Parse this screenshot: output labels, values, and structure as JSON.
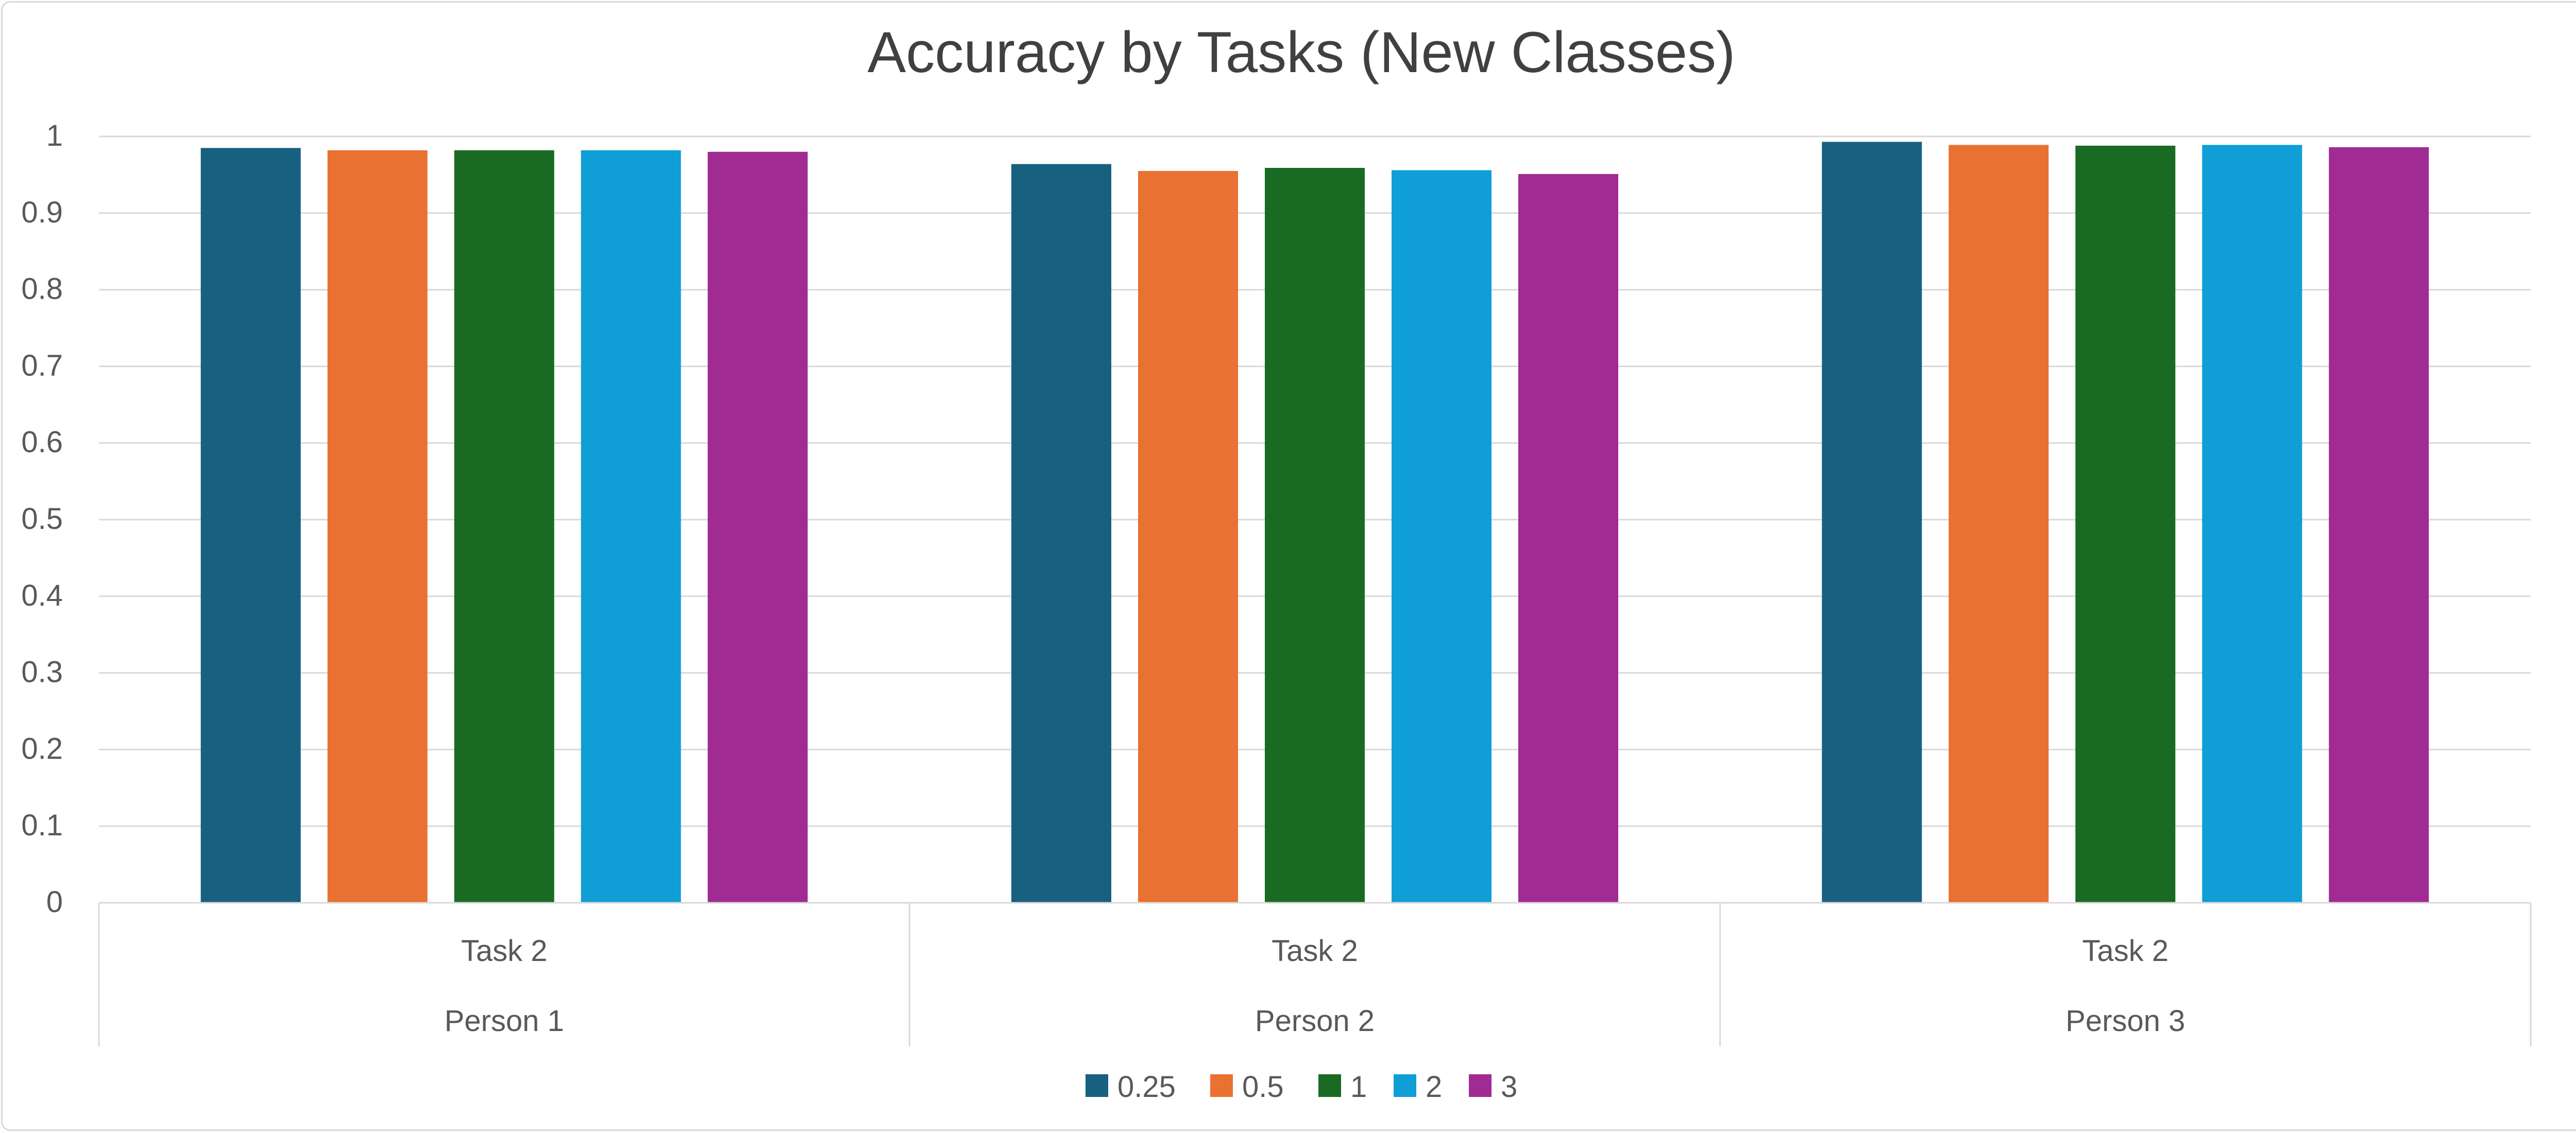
{
  "chart_data": {
    "type": "bar",
    "title": "Accuracy by Tasks (New Classes)",
    "categories": [
      {
        "task": "Task 2",
        "person": "Person 1"
      },
      {
        "task": "Task 2",
        "person": "Person 2"
      },
      {
        "task": "Task 2",
        "person": "Person 3"
      }
    ],
    "series": [
      {
        "name": "0.25",
        "color": "#17607f",
        "values": [
          0.985,
          0.964,
          0.993
        ]
      },
      {
        "name": "0.5",
        "color": "#e97132",
        "values": [
          0.982,
          0.955,
          0.989
        ]
      },
      {
        "name": "1",
        "color": "#196b24",
        "values": [
          0.982,
          0.959,
          0.988
        ]
      },
      {
        "name": "2",
        "color": "#0f9ed5",
        "values": [
          0.982,
          0.956,
          0.989
        ]
      },
      {
        "name": "3",
        "color": "#a02b93",
        "values": [
          0.98,
          0.951,
          0.986
        ]
      }
    ],
    "yticks": [
      "0",
      "0.1",
      "0.2",
      "0.3",
      "0.4",
      "0.5",
      "0.6",
      "0.7",
      "0.8",
      "0.9",
      "1"
    ],
    "ylim": [
      0,
      1
    ],
    "xlabel": "",
    "ylabel": "",
    "grid": true,
    "legend": "bottom"
  }
}
